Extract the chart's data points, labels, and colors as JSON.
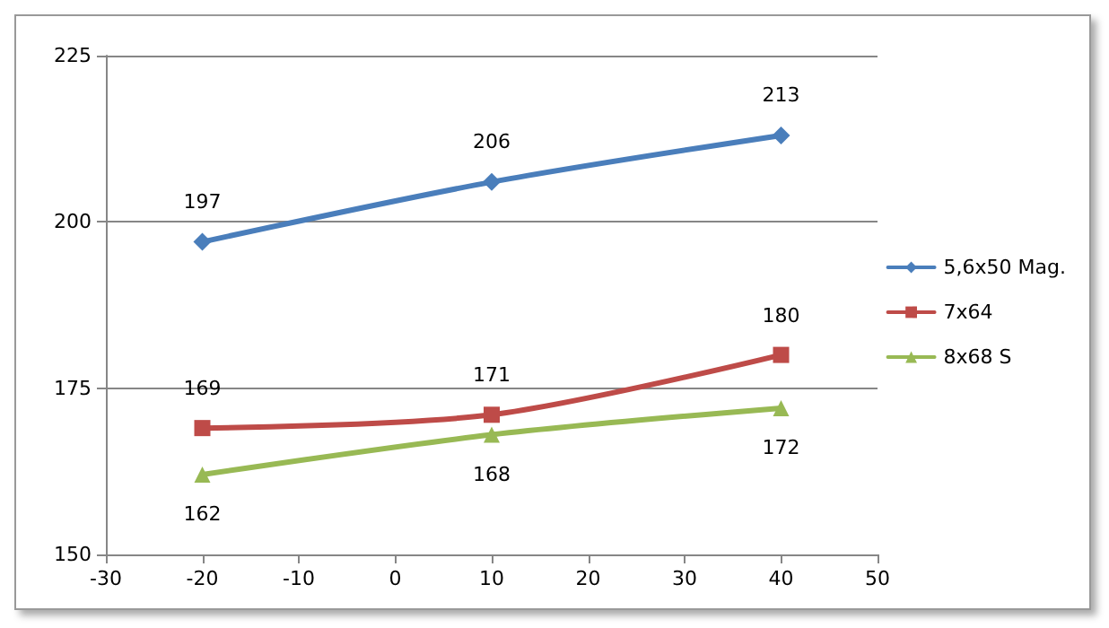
{
  "chart_data": {
    "type": "line",
    "x": [
      -20,
      10,
      40
    ],
    "series": [
      {
        "name": "5,6x50 Mag.",
        "color": "#4a7ebb",
        "marker": "diamond",
        "values": [
          197,
          206,
          213
        ]
      },
      {
        "name": "7x64",
        "color": "#be4b48",
        "marker": "square",
        "values": [
          169,
          171,
          180
        ]
      },
      {
        "name": "8x68 S",
        "color": "#98b954",
        "marker": "triangle",
        "values": [
          162,
          168,
          172
        ]
      }
    ],
    "xlim": [
      -30,
      50
    ],
    "xticks": [
      -30,
      -20,
      -10,
      0,
      10,
      20,
      30,
      40,
      50
    ],
    "ylim": [
      150,
      225
    ],
    "yticks": [
      150,
      175,
      200,
      225
    ],
    "grid": "y",
    "legend": "right",
    "data_labels": true,
    "line_style": "solid"
  }
}
